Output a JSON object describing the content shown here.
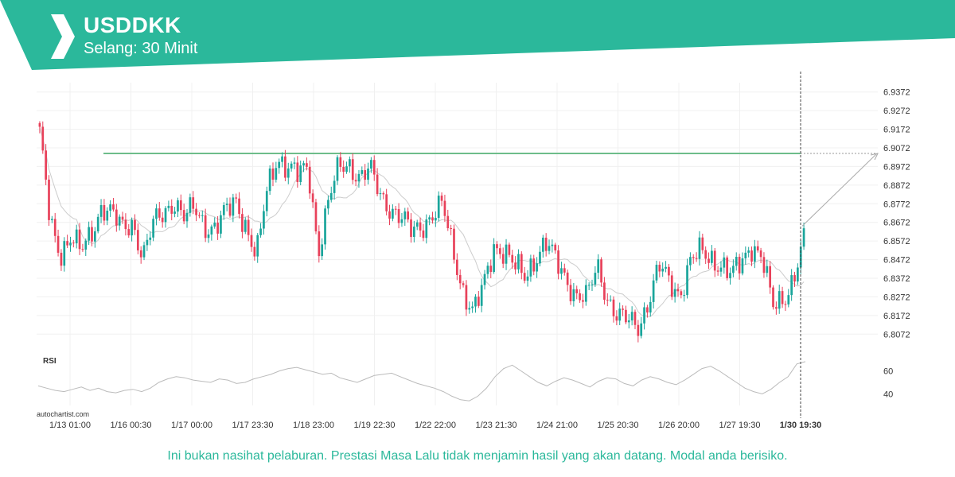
{
  "header": {
    "symbol": "USDDKK",
    "interval": "Selang: 30 Minit",
    "brand_color": "#2bb89b"
  },
  "watermark": "autochartist.com",
  "disclaimer": "Ini bukan nasihat pelaburan. Prestasi Masa Lalu tidak menjamin hasil yang akan datang. Modal anda berisiko.",
  "chart_data": {
    "type": "candlestick",
    "price_axis": {
      "ylim": [
        6.8022,
        6.9422
      ],
      "ticks": [
        "6.9372",
        "6.9272",
        "6.9172",
        "6.9072",
        "6.8972",
        "6.8872",
        "6.8772",
        "6.8672",
        "6.8572",
        "6.8472",
        "6.8372",
        "6.8272",
        "6.8172",
        "6.8072"
      ]
    },
    "x_tick_labels": [
      "1/13 01:00",
      "1/16 00:30",
      "1/17 00:00",
      "1/17 23:30",
      "1/18 23:00",
      "1/19 22:30",
      "1/22 22:00",
      "1/23 21:30",
      "1/24 21:00",
      "1/25 20:30",
      "1/26 20:00",
      "1/27 19:30",
      "1/30 19:30"
    ],
    "current_time_label": "1/30 19:30",
    "resistance_level": 6.9042,
    "close_anchors": [
      6.914,
      6.868,
      6.851,
      6.859,
      6.851,
      6.862,
      6.876,
      6.871,
      6.864,
      6.868,
      6.848,
      6.866,
      6.873,
      6.879,
      6.869,
      6.875,
      6.866,
      6.864,
      6.872,
      6.879,
      6.865,
      6.848,
      6.884,
      6.903,
      6.897,
      6.892,
      6.897,
      6.852,
      6.879,
      6.897,
      6.899,
      6.891,
      6.895,
      6.882,
      6.875,
      6.869,
      6.862,
      6.866,
      6.871,
      6.876,
      6.853,
      6.831,
      6.818,
      6.833,
      6.855,
      6.852,
      6.843,
      6.838,
      6.849,
      6.856,
      6.846,
      6.837,
      6.828,
      6.826,
      6.844,
      6.827,
      6.816,
      6.814,
      6.812,
      6.826,
      6.843,
      6.835,
      6.829,
      6.846,
      6.851,
      6.848,
      6.845,
      6.838,
      6.846,
      6.856,
      6.848,
      6.821,
      6.826,
      6.838,
      6.857
    ],
    "projection": {
      "from": 6.8652,
      "to": 6.9042
    },
    "colors": {
      "up": "#1aa59b",
      "down": "#e8415a",
      "ma": "#cccccc",
      "level": "#6ebd8a",
      "rsi": "#bbbbbb"
    },
    "rsi": {
      "label": "RSI",
      "ylim": [
        30,
        70
      ],
      "ticks": [
        "60",
        "40"
      ],
      "values": [
        47,
        45,
        43,
        42,
        44,
        46,
        43,
        45,
        42,
        41,
        43,
        44,
        42,
        45,
        50,
        53,
        55,
        54,
        52,
        51,
        50,
        53,
        52,
        49,
        50,
        53,
        55,
        57,
        60,
        62,
        63,
        61,
        59,
        57,
        58,
        54,
        52,
        50,
        53,
        56,
        57,
        58,
        55,
        52,
        49,
        47,
        45,
        42,
        38,
        35,
        34,
        38,
        45,
        55,
        62,
        65,
        60,
        55,
        50,
        47,
        51,
        54,
        52,
        49,
        46,
        51,
        54,
        53,
        49,
        47,
        52,
        55,
        53,
        50,
        48,
        52,
        57,
        62,
        64,
        60,
        55,
        50,
        45,
        42,
        40,
        44,
        50,
        55,
        66,
        68
      ]
    }
  }
}
